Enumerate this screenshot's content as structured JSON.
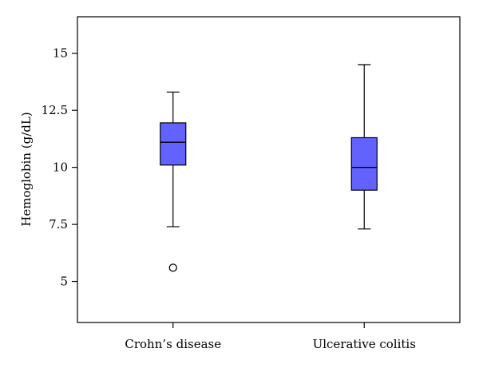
{
  "chart_data": {
    "type": "boxplot",
    "title": "",
    "xlabel": "",
    "ylabel": "Hemoglobin (g/dL)",
    "ylim": [
      3.2,
      16.6
    ],
    "yticks": [
      5,
      7.5,
      10,
      12.5,
      15
    ],
    "ytick_labels": [
      "5",
      "7.5",
      "10",
      "12.5",
      "15"
    ],
    "grid": false,
    "box_color": "#6262ff",
    "categories": [
      "Crohn’s disease",
      "Ulcerative colitis"
    ],
    "boxes": [
      {
        "name": "Crohn’s disease",
        "min": 7.4,
        "q1": 10.1,
        "median": 11.1,
        "q3": 11.95,
        "max": 13.3,
        "outliers": [
          5.6
        ]
      },
      {
        "name": "Ulcerative colitis",
        "min": 7.3,
        "q1": 9.0,
        "median": 10.0,
        "q3": 11.3,
        "max": 14.5,
        "outliers": []
      }
    ]
  }
}
